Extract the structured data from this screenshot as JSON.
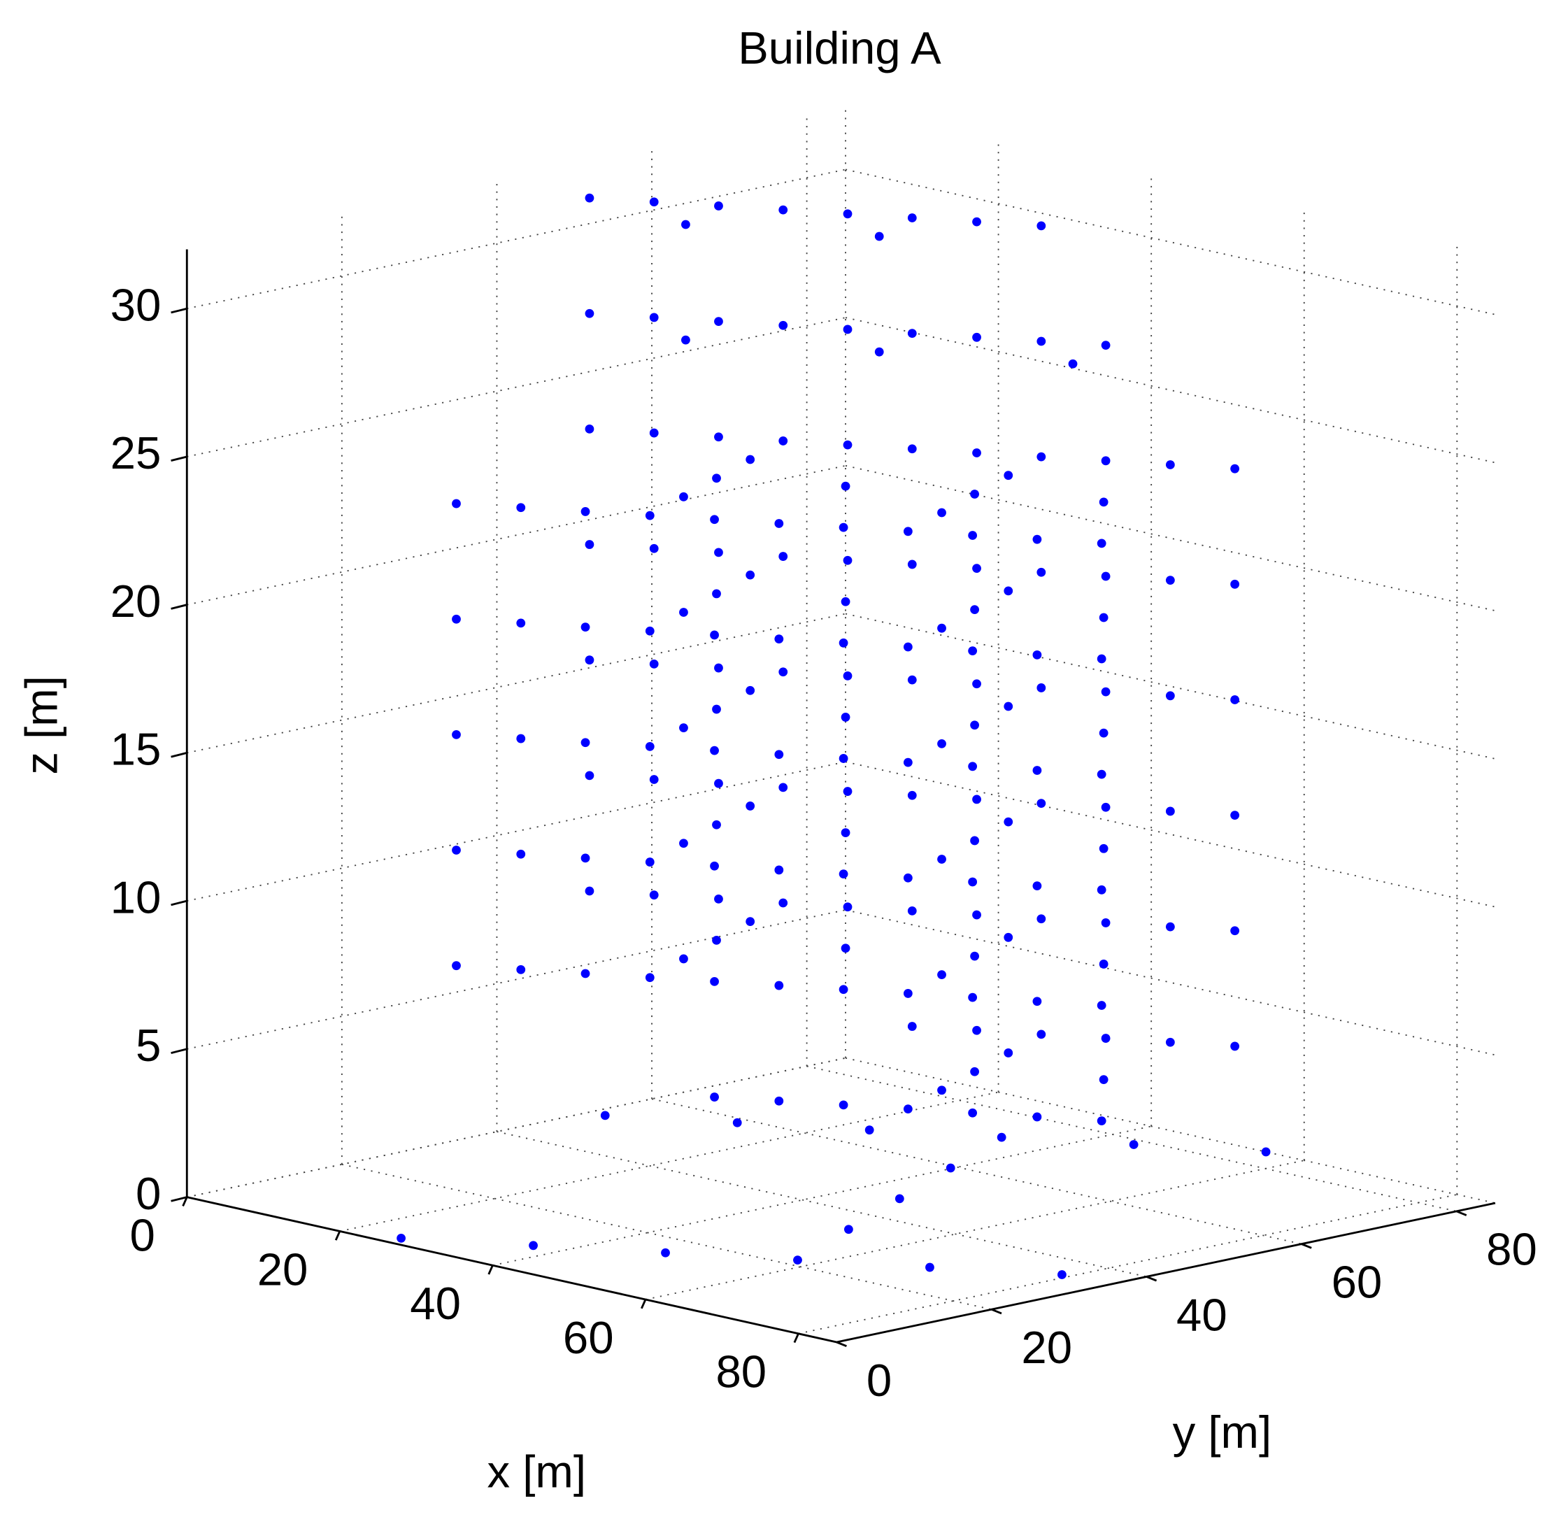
{
  "chart_data": {
    "type": "scatter3d",
    "title": "Building A",
    "xlabel": "x [m]",
    "ylabel": "y [m]",
    "zlabel": "z [m]",
    "xlim": [
      0,
      85
    ],
    "ylim": [
      0,
      85
    ],
    "zlim": [
      0,
      32
    ],
    "xticks": [
      0,
      20,
      40,
      60,
      80
    ],
    "yticks": [
      0,
      20,
      40,
      60,
      80
    ],
    "zticks": [
      0,
      5,
      10,
      15,
      20,
      25,
      30
    ],
    "grid": true,
    "color": "#0000ff",
    "series": [
      {
        "x": [
          26,
          36.6,
          47.2,
          57.8,
          68.4,
          79,
          2,
          12.6,
          23.2,
          33.8,
          44.4,
          55,
          51.8,
          45.8,
          39.8
        ],
        "y": [
          2,
          8.6,
          15.2,
          21.8,
          28.4,
          35,
          52,
          58.6,
          65.2,
          71.8,
          78.4,
          85,
          34.3,
          46.8,
          59.3
        ],
        "z": [
          0,
          0,
          0,
          0,
          0,
          0,
          0,
          0,
          0,
          0,
          0,
          0,
          0,
          0,
          0
        ]
      },
      {
        "x": [
          38.2,
          43.5,
          48.8,
          54.1,
          59.4,
          64.7,
          70,
          29.5,
          34.8,
          40.1,
          45.4,
          50.7,
          56,
          50.6,
          47.1,
          43.6,
          57.7
        ],
        "y": [
          30.4,
          33.5,
          36.6,
          39.7,
          42.8,
          45.9,
          49,
          64.5,
          67.6,
          70.7,
          73.8,
          76.9,
          80,
          47.5,
          55.2,
          63,
          61.4
        ],
        "z": [
          3.9,
          3.9,
          3.9,
          3.9,
          3.9,
          3.9,
          3.9,
          3.9,
          3.9,
          3.9,
          3.9,
          3.9,
          3.9,
          3.9,
          3.9,
          3.9,
          3.9
        ]
      },
      {
        "x": [
          17,
          22.3,
          27.6,
          32.9,
          38.2,
          43.5,
          48.8,
          54.1,
          59.4,
          64.7,
          70,
          3,
          8.3,
          13.6,
          18.9,
          24.2,
          29.5,
          34.8,
          40.1,
          45.4,
          50.7,
          56,
          29.4,
          25.9,
          22.4,
          50.6,
          47.1,
          43.6,
          36.5,
          57.7
        ],
        "y": [
          18,
          21.1,
          24.2,
          27.3,
          30.4,
          33.5,
          36.6,
          39.7,
          42.8,
          45.9,
          49,
          49,
          52.1,
          55.2,
          58.3,
          61.4,
          64.5,
          67.6,
          70.7,
          73.8,
          76.9,
          80,
          35.1,
          42.8,
          50.6,
          47.5,
          55.2,
          63,
          49,
          61.4
        ],
        "z": [
          7.8,
          7.8,
          7.8,
          7.8,
          7.8,
          7.8,
          7.8,
          7.8,
          7.8,
          7.8,
          7.8,
          7.8,
          7.8,
          7.8,
          7.8,
          7.8,
          7.8,
          7.8,
          7.8,
          7.8,
          7.8,
          7.8,
          7.8,
          7.8,
          7.8,
          7.8,
          7.8,
          7.8,
          7.8,
          7.8
        ]
      },
      {
        "x": [
          17,
          22.3,
          27.6,
          32.9,
          38.2,
          43.5,
          48.8,
          54.1,
          59.4,
          64.7,
          70,
          3,
          8.3,
          13.6,
          18.9,
          24.2,
          29.5,
          34.8,
          40.1,
          45.4,
          50.7,
          56,
          29.4,
          25.9,
          22.4,
          50.6,
          47.1,
          43.6,
          36.5,
          57.7
        ],
        "y": [
          18,
          21.1,
          24.2,
          27.3,
          30.4,
          33.5,
          36.6,
          39.7,
          42.8,
          45.9,
          49,
          49,
          52.1,
          55.2,
          58.3,
          61.4,
          64.5,
          67.6,
          70.7,
          73.8,
          76.9,
          80,
          35.1,
          42.8,
          50.6,
          47.5,
          55.2,
          63,
          49,
          61.4
        ],
        "z": [
          11.7,
          11.7,
          11.7,
          11.7,
          11.7,
          11.7,
          11.7,
          11.7,
          11.7,
          11.7,
          11.7,
          11.7,
          11.7,
          11.7,
          11.7,
          11.7,
          11.7,
          11.7,
          11.7,
          11.7,
          11.7,
          11.7,
          11.7,
          11.7,
          11.7,
          11.7,
          11.7,
          11.7,
          11.7,
          11.7
        ]
      },
      {
        "x": [
          17,
          22.3,
          27.6,
          32.9,
          38.2,
          43.5,
          48.8,
          54.1,
          59.4,
          64.7,
          70,
          3,
          8.3,
          13.6,
          18.9,
          24.2,
          29.5,
          34.8,
          40.1,
          45.4,
          50.7,
          56,
          29.4,
          25.9,
          22.4,
          50.6,
          47.1,
          43.6,
          36.5,
          57.7
        ],
        "y": [
          18,
          21.1,
          24.2,
          27.3,
          30.4,
          33.5,
          36.6,
          39.7,
          42.8,
          45.9,
          49,
          49,
          52.1,
          55.2,
          58.3,
          61.4,
          64.5,
          67.6,
          70.7,
          73.8,
          76.9,
          80,
          35.1,
          42.8,
          50.6,
          47.5,
          55.2,
          63,
          49,
          61.4
        ],
        "z": [
          15.6,
          15.6,
          15.6,
          15.6,
          15.6,
          15.6,
          15.6,
          15.6,
          15.6,
          15.6,
          15.6,
          15.6,
          15.6,
          15.6,
          15.6,
          15.6,
          15.6,
          15.6,
          15.6,
          15.6,
          15.6,
          15.6,
          15.6,
          15.6,
          15.6,
          15.6,
          15.6,
          15.6,
          15.6,
          15.6
        ]
      },
      {
        "x": [
          17,
          22.3,
          27.6,
          32.9,
          38.2,
          43.5,
          48.8,
          54.1,
          59.4,
          64.7,
          70,
          3,
          8.3,
          13.6,
          18.9,
          24.2,
          29.5,
          34.8,
          40.1,
          45.4,
          50.7,
          56,
          29.4,
          25.9,
          22.4,
          50.6,
          47.1,
          43.6,
          36.5,
          57.7
        ],
        "y": [
          18,
          21.1,
          24.2,
          27.3,
          30.4,
          33.5,
          36.6,
          39.7,
          42.8,
          45.9,
          49,
          49,
          52.1,
          55.2,
          58.3,
          61.4,
          64.5,
          67.6,
          70.7,
          73.8,
          76.9,
          80,
          35.1,
          42.8,
          50.6,
          47.5,
          55.2,
          63,
          49,
          61.4
        ],
        "z": [
          19.5,
          19.5,
          19.5,
          19.5,
          19.5,
          19.5,
          19.5,
          19.5,
          19.5,
          19.5,
          19.5,
          19.5,
          19.5,
          19.5,
          19.5,
          19.5,
          19.5,
          19.5,
          19.5,
          19.5,
          19.5,
          19.5,
          19.5,
          19.5,
          19.5,
          19.5,
          19.5,
          19.5,
          19.5,
          19.5
        ]
      },
      {
        "x": [
          17,
          22.3,
          27.6,
          32.9,
          38.2,
          43.5,
          48.8,
          54.1,
          59.4,
          64.7,
          70,
          3,
          8.3,
          13.6,
          18.9,
          24.2,
          29.5,
          34.8,
          40.1,
          45.4,
          50.7,
          56,
          29.4,
          25.9,
          22.4,
          50.6,
          47.1,
          43.6,
          36.5,
          57.7
        ],
        "y": [
          18,
          21.1,
          24.2,
          27.3,
          30.4,
          33.5,
          36.6,
          39.7,
          42.8,
          45.9,
          49,
          49,
          52.1,
          55.2,
          58.3,
          61.4,
          64.5,
          67.6,
          70.7,
          73.8,
          76.9,
          80,
          35.1,
          42.8,
          50.6,
          47.5,
          55.2,
          63,
          49,
          61.4
        ],
        "z": [
          23.4,
          23.4,
          23.4,
          23.4,
          23.4,
          23.4,
          23.4,
          23.4,
          23.4,
          23.4,
          23.4,
          23.4,
          23.4,
          23.4,
          23.4,
          23.4,
          23.4,
          23.4,
          23.4,
          23.4,
          23.4,
          23.4,
          23.4,
          23.4,
          23.4,
          23.4,
          23.4,
          23.4,
          23.4,
          23.4
        ]
      },
      {
        "x": [
          3,
          8.3,
          13.6,
          18.9,
          24.2,
          29.5,
          34.8,
          40.1,
          45.4,
          17.1,
          33,
          48.9
        ],
        "y": [
          49,
          52.1,
          55.2,
          58.3,
          61.4,
          64.5,
          67.6,
          70.7,
          73.8,
          47.5,
          56.8,
          66.1
        ],
        "z": [
          27.3,
          27.3,
          27.3,
          27.3,
          27.3,
          27.3,
          27.3,
          27.3,
          27.3,
          27.3,
          27.3,
          27.3
        ]
      },
      {
        "x": [
          3,
          8.3,
          13.6,
          18.9,
          24.2,
          29.5,
          34.8,
          40.1,
          17.1,
          33
        ],
        "y": [
          49,
          52.1,
          55.2,
          58.3,
          61.4,
          64.5,
          67.6,
          70.7,
          47.5,
          56.8
        ],
        "z": [
          31.2,
          31.2,
          31.2,
          31.2,
          31.2,
          31.2,
          31.2,
          31.2,
          31.2,
          31.2
        ]
      }
    ]
  }
}
